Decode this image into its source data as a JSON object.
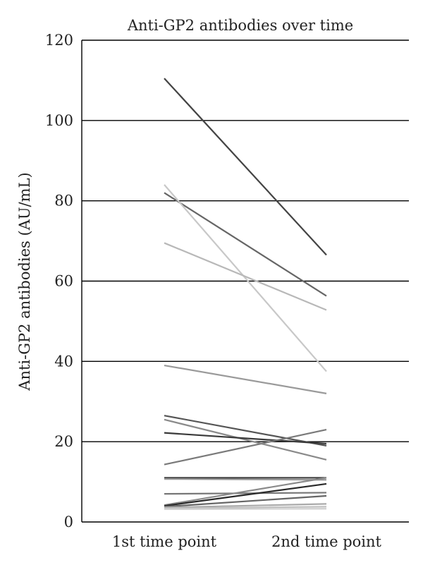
{
  "chart_data": {
    "type": "line",
    "title": "Anti-GP2 antibodies over time",
    "xlabel": "",
    "ylabel": "Anti-GP2 antibodies (AU/mL)",
    "categories": [
      "1st time point",
      "2nd time point"
    ],
    "ylim": [
      0,
      120
    ],
    "yticks": [
      0,
      20,
      40,
      60,
      80,
      100,
      120
    ],
    "grid": true,
    "series": [
      {
        "values": [
          110.5,
          66.5
        ],
        "color": "#444444"
      },
      {
        "values": [
          82.0,
          56.3
        ],
        "color": "#666666"
      },
      {
        "values": [
          84.0,
          37.5
        ],
        "color": "#c8c8c8"
      },
      {
        "values": [
          69.5,
          52.8
        ],
        "color": "#b8b8b8"
      },
      {
        "values": [
          39.0,
          32.0
        ],
        "color": "#9a9a9a"
      },
      {
        "values": [
          26.5,
          19.0
        ],
        "color": "#555555"
      },
      {
        "values": [
          25.5,
          15.5
        ],
        "color": "#8a8a8a"
      },
      {
        "values": [
          22.2,
          19.5
        ],
        "color": "#3a3a3a"
      },
      {
        "values": [
          14.3,
          23.0
        ],
        "color": "#7a7a7a"
      },
      {
        "values": [
          11.0,
          11.0
        ],
        "color": "#444444"
      },
      {
        "values": [
          10.7,
          10.5
        ],
        "color": "#999999"
      },
      {
        "values": [
          7.0,
          7.3
        ],
        "color": "#777777"
      },
      {
        "values": [
          4.2,
          11.0
        ],
        "color": "#8a8a8a"
      },
      {
        "values": [
          4.0,
          9.5
        ],
        "color": "#2a2a2a"
      },
      {
        "values": [
          3.8,
          6.5
        ],
        "color": "#666666"
      },
      {
        "values": [
          3.6,
          4.5
        ],
        "color": "#aaaaaa"
      },
      {
        "values": [
          3.4,
          3.8
        ],
        "color": "#c0c0c0"
      },
      {
        "values": [
          3.2,
          3.3
        ],
        "color": "#d0d0d0"
      }
    ]
  }
}
